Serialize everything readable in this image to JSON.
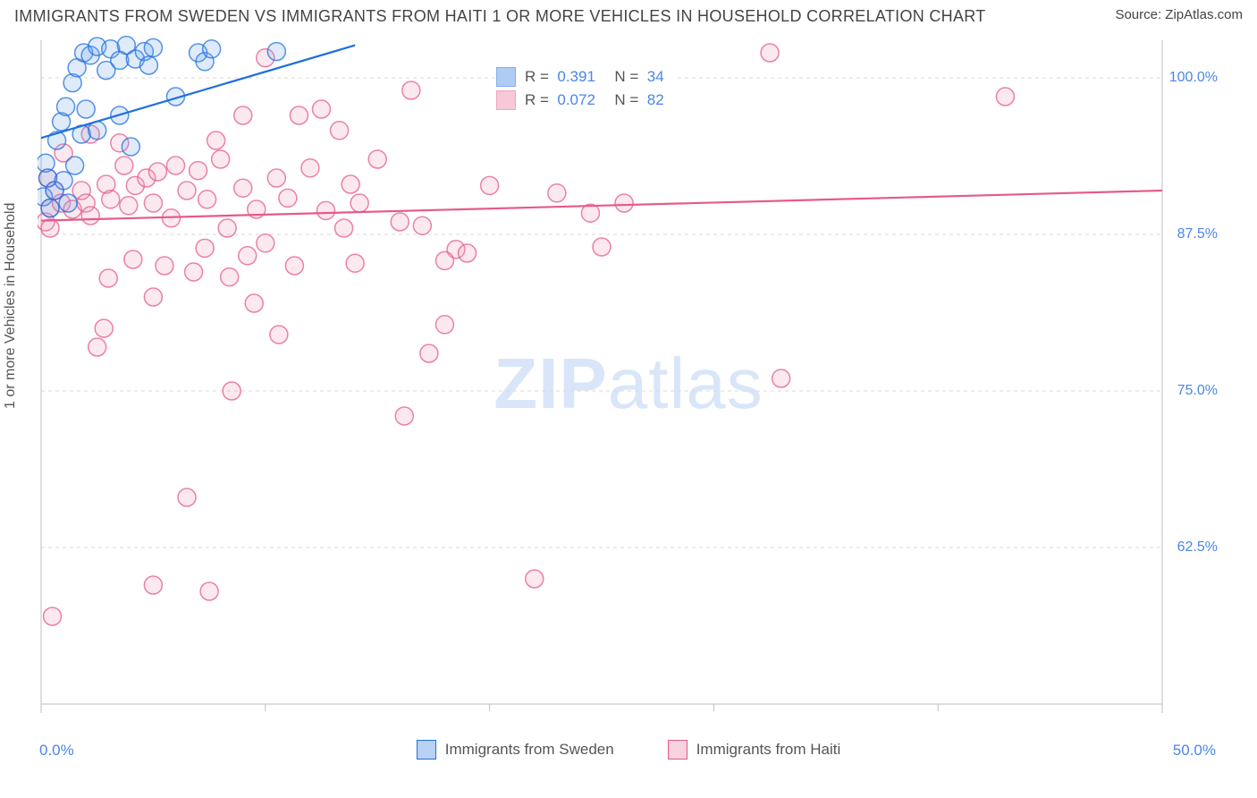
{
  "header": {
    "title": "IMMIGRANTS FROM SWEDEN VS IMMIGRANTS FROM HAITI 1 OR MORE VEHICLES IN HOUSEHOLD CORRELATION CHART",
    "source": "Source: ZipAtlas.com"
  },
  "watermark": {
    "pre": "ZIP",
    "post": "atlas"
  },
  "chart": {
    "type": "scatter",
    "ylabel": "1 or more Vehicles in Household",
    "background_color": "#ffffff",
    "grid_color": "#d9d9d9",
    "axis_color": "#bfbfbf",
    "xlim": [
      0,
      50
    ],
    "ylim": [
      50,
      103
    ],
    "xticks": [
      0,
      50
    ],
    "xtick_labels": [
      "0.0%",
      "50.0%"
    ],
    "xtick_minor": [
      10,
      20,
      30,
      40
    ],
    "yticks": [
      62.5,
      75.0,
      87.5,
      100.0
    ],
    "ytick_labels": [
      "62.5%",
      "75.0%",
      "87.5%",
      "100.0%"
    ],
    "marker_radius": 10,
    "marker_stroke_width": 1.5,
    "marker_fill_opacity": 0.22,
    "line_width": 2.2,
    "series": [
      {
        "name": "Immigrants from Sweden",
        "color_stroke": "#1f6fe0",
        "color_fill": "#6fa3ea",
        "R": "0.391",
        "N": "34",
        "trend": {
          "x1": 0,
          "y1": 95.2,
          "x2": 14,
          "y2": 102.6
        },
        "points": [
          [
            0.1,
            90.5
          ],
          [
            0.3,
            92.0
          ],
          [
            0.7,
            95.0
          ],
          [
            0.9,
            96.5
          ],
          [
            1.1,
            97.7
          ],
          [
            1.4,
            99.6
          ],
          [
            1.6,
            100.8
          ],
          [
            1.9,
            102.0
          ],
          [
            2.2,
            101.8
          ],
          [
            2.5,
            102.5
          ],
          [
            2.9,
            100.6
          ],
          [
            3.1,
            102.3
          ],
          [
            3.5,
            101.4
          ],
          [
            3.8,
            102.6
          ],
          [
            4.2,
            101.5
          ],
          [
            4.6,
            102.1
          ],
          [
            4.8,
            101.0
          ],
          [
            5.0,
            102.4
          ],
          [
            0.6,
            91.0
          ],
          [
            1.0,
            91.8
          ],
          [
            1.5,
            93.0
          ],
          [
            1.8,
            95.5
          ],
          [
            2.5,
            95.8
          ],
          [
            2.0,
            97.5
          ],
          [
            3.5,
            97.0
          ],
          [
            4.0,
            94.5
          ],
          [
            7.0,
            102.0
          ],
          [
            7.3,
            101.3
          ],
          [
            7.6,
            102.3
          ],
          [
            10.5,
            102.1
          ],
          [
            6.0,
            98.5
          ],
          [
            1.2,
            90.0
          ],
          [
            0.4,
            89.6
          ],
          [
            0.2,
            93.2
          ]
        ]
      },
      {
        "name": "Immigrants from Haiti",
        "color_stroke": "#e65a8a",
        "color_fill": "#f29cb9",
        "R": "0.072",
        "N": "82",
        "trend": {
          "x1": 0,
          "y1": 88.6,
          "x2": 50,
          "y2": 91.0
        },
        "points": [
          [
            0.2,
            88.5
          ],
          [
            0.4,
            89.6
          ],
          [
            0.6,
            91.0
          ],
          [
            0.9,
            90.0
          ],
          [
            0.3,
            92.0
          ],
          [
            1.4,
            89.5
          ],
          [
            1.8,
            91.0
          ],
          [
            2.0,
            90.0
          ],
          [
            2.2,
            89.0
          ],
          [
            2.9,
            91.5
          ],
          [
            3.1,
            90.3
          ],
          [
            3.7,
            93.0
          ],
          [
            3.9,
            89.8
          ],
          [
            4.2,
            91.4
          ],
          [
            4.7,
            92.0
          ],
          [
            5.0,
            90.0
          ],
          [
            5.2,
            92.5
          ],
          [
            5.8,
            88.8
          ],
          [
            6.5,
            91.0
          ],
          [
            7.0,
            92.6
          ],
          [
            7.4,
            90.3
          ],
          [
            8.0,
            93.5
          ],
          [
            8.3,
            88.0
          ],
          [
            9.0,
            91.2
          ],
          [
            9.6,
            89.5
          ],
          [
            10.5,
            92.0
          ],
          [
            11.0,
            90.4
          ],
          [
            11.5,
            97.0
          ],
          [
            12.0,
            92.8
          ],
          [
            12.7,
            89.4
          ],
          [
            13.3,
            95.8
          ],
          [
            13.8,
            91.5
          ],
          [
            14.2,
            90.0
          ],
          [
            15.0,
            93.5
          ],
          [
            16.5,
            99.0
          ],
          [
            17.0,
            88.2
          ],
          [
            18.5,
            86.3
          ],
          [
            19.0,
            86.0
          ],
          [
            20.0,
            91.4
          ],
          [
            23.0,
            90.8
          ],
          [
            24.5,
            89.2
          ],
          [
            25.0,
            86.5
          ],
          [
            26.0,
            90.0
          ],
          [
            3.0,
            84.0
          ],
          [
            4.1,
            85.5
          ],
          [
            5.5,
            85.0
          ],
          [
            6.8,
            84.5
          ],
          [
            7.3,
            86.4
          ],
          [
            8.4,
            84.1
          ],
          [
            9.2,
            85.8
          ],
          [
            10.0,
            86.8
          ],
          [
            11.3,
            85.0
          ],
          [
            14.0,
            85.2
          ],
          [
            16.0,
            88.5
          ],
          [
            18.0,
            85.4
          ],
          [
            0.4,
            88.0
          ],
          [
            1.0,
            94.0
          ],
          [
            2.2,
            95.5
          ],
          [
            3.5,
            94.8
          ],
          [
            2.8,
            80.0
          ],
          [
            5.0,
            82.5
          ],
          [
            9.5,
            82.0
          ],
          [
            10.6,
            79.5
          ],
          [
            17.3,
            78.0
          ],
          [
            18.0,
            80.3
          ],
          [
            16.2,
            73.0
          ],
          [
            8.5,
            75.0
          ],
          [
            10.0,
            101.6
          ],
          [
            2.5,
            78.5
          ],
          [
            5.0,
            59.5
          ],
          [
            7.5,
            59.0
          ],
          [
            6.5,
            66.5
          ],
          [
            22.0,
            60.0
          ],
          [
            0.5,
            57.0
          ],
          [
            32.5,
            102.0
          ],
          [
            33.0,
            76.0
          ],
          [
            43.0,
            98.5
          ],
          [
            12.5,
            97.5
          ],
          [
            6.0,
            93.0
          ],
          [
            7.8,
            95.0
          ],
          [
            9.0,
            97.0
          ],
          [
            13.5,
            88.0
          ]
        ]
      }
    ],
    "legend_bottom": [
      {
        "label": "Immigrants from Sweden",
        "swatch_stroke": "#1f6fe0",
        "swatch_fill": "#b9d1f4"
      },
      {
        "label": "Immigrants from Haiti",
        "swatch_stroke": "#e65a8a",
        "swatch_fill": "#f9d2df"
      }
    ]
  }
}
